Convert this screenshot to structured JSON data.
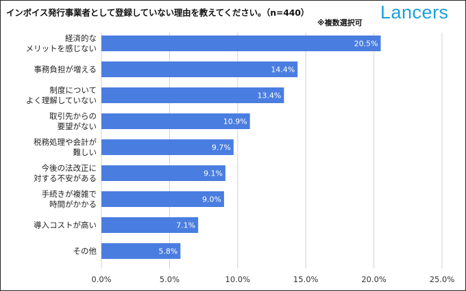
{
  "header": {
    "title": "インボイス発行事業者として登録していない理由を教えてください。（n=440）",
    "note": "※複数選択可",
    "brand": "Lancers"
  },
  "colors": {
    "bar": "#4a7de0",
    "grid": "#d0d0d0",
    "brand": "#1aa0dd"
  },
  "chart_data": {
    "type": "bar",
    "orientation": "horizontal",
    "title": "インボイス発行事業者として登録していない理由を教えてください。（n=440）",
    "subtitle": "※複数選択可",
    "categories": [
      [
        "経済的な",
        "メリットを感じない"
      ],
      [
        "事務負担が増える"
      ],
      [
        "制度について",
        "よく理解していない"
      ],
      [
        "取引先からの",
        "要望がない"
      ],
      [
        "税務処理や会計が",
        "難しい"
      ],
      [
        "今後の法改正に",
        "対する不安がある"
      ],
      [
        "手続きが複雑で",
        "時間がかかる"
      ],
      [
        "導入コストが高い"
      ],
      [
        "その他"
      ]
    ],
    "values": [
      20.5,
      14.4,
      13.4,
      10.9,
      9.7,
      9.1,
      9.0,
      7.1,
      5.8
    ],
    "value_labels": [
      "20.5%",
      "14.4%",
      "13.4%",
      "10.9%",
      "9.7%",
      "9.1%",
      "9.0%",
      "7.1%",
      "5.8%"
    ],
    "xlim": [
      0,
      25
    ],
    "ticks": [
      0,
      5,
      10,
      15,
      20,
      25
    ],
    "tick_labels": [
      "0.0%",
      "5.0%",
      "10.0%",
      "15.0%",
      "20.0%",
      "25.0%"
    ],
    "grid": true,
    "xlabel": "",
    "ylabel": ""
  }
}
